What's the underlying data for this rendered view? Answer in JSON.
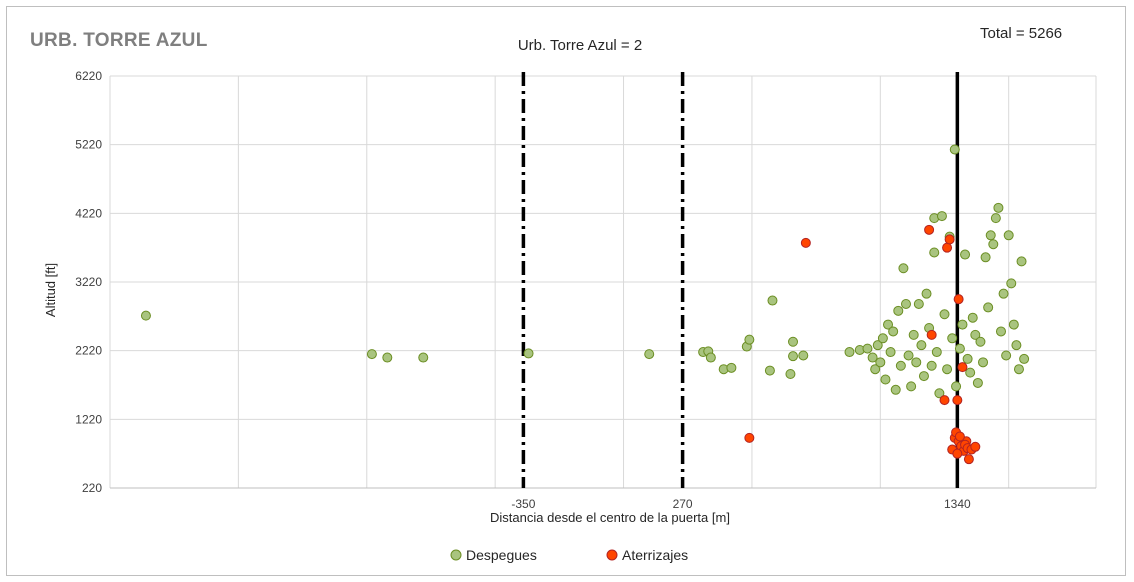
{
  "header": {
    "corner_title": "URB. TORRE AZUL",
    "chart_title": "Urb. Torre Azul = 2",
    "total": "Total = 5266"
  },
  "chart_data": {
    "type": "scatter",
    "title": "Urb. Torre Azul = 2",
    "xlabel": "Distancia desde el centro de la puerta [m]",
    "ylabel": "Altitud [ft]",
    "ylim": [
      220,
      6220
    ],
    "xlim": [
      -1960,
      1880
    ],
    "yticks": [
      220,
      1220,
      2220,
      3220,
      4220,
      5220,
      6220
    ],
    "xtick_labels": [
      -350,
      270,
      1340
    ],
    "grid_x": [
      -1960,
      -1460,
      -960,
      -460,
      40,
      540,
      1040,
      1540,
      1880
    ],
    "reference_lines": {
      "dashdot": [
        -350,
        270
      ],
      "solid": [
        1340
      ]
    },
    "legend": {
      "position": "bottom",
      "entries": [
        "Despegues",
        "Aterrizajes"
      ]
    },
    "colors": {
      "despegues": "#a9c47f",
      "despegues_edge": "#6b8e23",
      "aterrizajes": "#ff4500",
      "aterrizajes_edge": "#b22222"
    },
    "series": [
      {
        "name": "Despegues",
        "points": [
          [
            -1820,
            2730
          ],
          [
            -940,
            2170
          ],
          [
            -880,
            2120
          ],
          [
            -740,
            2120
          ],
          [
            -330,
            2180
          ],
          [
            140,
            2170
          ],
          [
            350,
            2200
          ],
          [
            370,
            2210
          ],
          [
            380,
            2120
          ],
          [
            430,
            1950
          ],
          [
            460,
            1970
          ],
          [
            520,
            2280
          ],
          [
            530,
            2380
          ],
          [
            610,
            1930
          ],
          [
            620,
            2950
          ],
          [
            690,
            1880
          ],
          [
            700,
            2140
          ],
          [
            700,
            2350
          ],
          [
            740,
            2150
          ],
          [
            920,
            2200
          ],
          [
            960,
            2230
          ],
          [
            990,
            2250
          ],
          [
            1010,
            2120
          ],
          [
            1020,
            1950
          ],
          [
            1030,
            2300
          ],
          [
            1040,
            2050
          ],
          [
            1050,
            2400
          ],
          [
            1060,
            1800
          ],
          [
            1070,
            2600
          ],
          [
            1080,
            2200
          ],
          [
            1090,
            2500
          ],
          [
            1100,
            1650
          ],
          [
            1110,
            2800
          ],
          [
            1120,
            2000
          ],
          [
            1130,
            3420
          ],
          [
            1140,
            2900
          ],
          [
            1150,
            2150
          ],
          [
            1160,
            1700
          ],
          [
            1170,
            2450
          ],
          [
            1180,
            2050
          ],
          [
            1190,
            2900
          ],
          [
            1200,
            2300
          ],
          [
            1210,
            1850
          ],
          [
            1220,
            3050
          ],
          [
            1230,
            2550
          ],
          [
            1240,
            2000
          ],
          [
            1250,
            3650
          ],
          [
            1250,
            4150
          ],
          [
            1260,
            2200
          ],
          [
            1270,
            1600
          ],
          [
            1280,
            4180
          ],
          [
            1290,
            2750
          ],
          [
            1300,
            1950
          ],
          [
            1310,
            3880
          ],
          [
            1320,
            2400
          ],
          [
            1330,
            5150
          ],
          [
            1335,
            1700
          ],
          [
            1350,
            2250
          ],
          [
            1360,
            2600
          ],
          [
            1370,
            3620
          ],
          [
            1380,
            2100
          ],
          [
            1390,
            1900
          ],
          [
            1400,
            2700
          ],
          [
            1410,
            2450
          ],
          [
            1420,
            1750
          ],
          [
            1430,
            2350
          ],
          [
            1440,
            2050
          ],
          [
            1450,
            3580
          ],
          [
            1460,
            2850
          ],
          [
            1470,
            3900
          ],
          [
            1480,
            3770
          ],
          [
            1490,
            4150
          ],
          [
            1500,
            4300
          ],
          [
            1510,
            2500
          ],
          [
            1520,
            3050
          ],
          [
            1530,
            2150
          ],
          [
            1540,
            3900
          ],
          [
            1550,
            3200
          ],
          [
            1560,
            2600
          ],
          [
            1570,
            2300
          ],
          [
            1580,
            1950
          ],
          [
            1590,
            3520
          ],
          [
            1600,
            2100
          ]
        ]
      },
      {
        "name": "Aterrizajes",
        "points": [
          [
            530,
            950
          ],
          [
            750,
            3790
          ],
          [
            1230,
            3980
          ],
          [
            1240,
            2450
          ],
          [
            1290,
            1500
          ],
          [
            1300,
            3720
          ],
          [
            1310,
            3840
          ],
          [
            1330,
            950
          ],
          [
            1340,
            1500
          ],
          [
            1345,
            2970
          ],
          [
            1360,
            1980
          ],
          [
            1335,
            1030
          ],
          [
            1345,
            900
          ],
          [
            1355,
            830
          ],
          [
            1365,
            760
          ],
          [
            1375,
            900
          ],
          [
            1385,
            640
          ],
          [
            1320,
            780
          ],
          [
            1340,
            720
          ],
          [
            1350,
            970
          ],
          [
            1370,
            850
          ],
          [
            1380,
            800
          ],
          [
            1395,
            780
          ],
          [
            1410,
            820
          ]
        ]
      }
    ]
  },
  "legend": {
    "despegues": "Despegues",
    "aterrizajes": "Aterrizajes"
  }
}
